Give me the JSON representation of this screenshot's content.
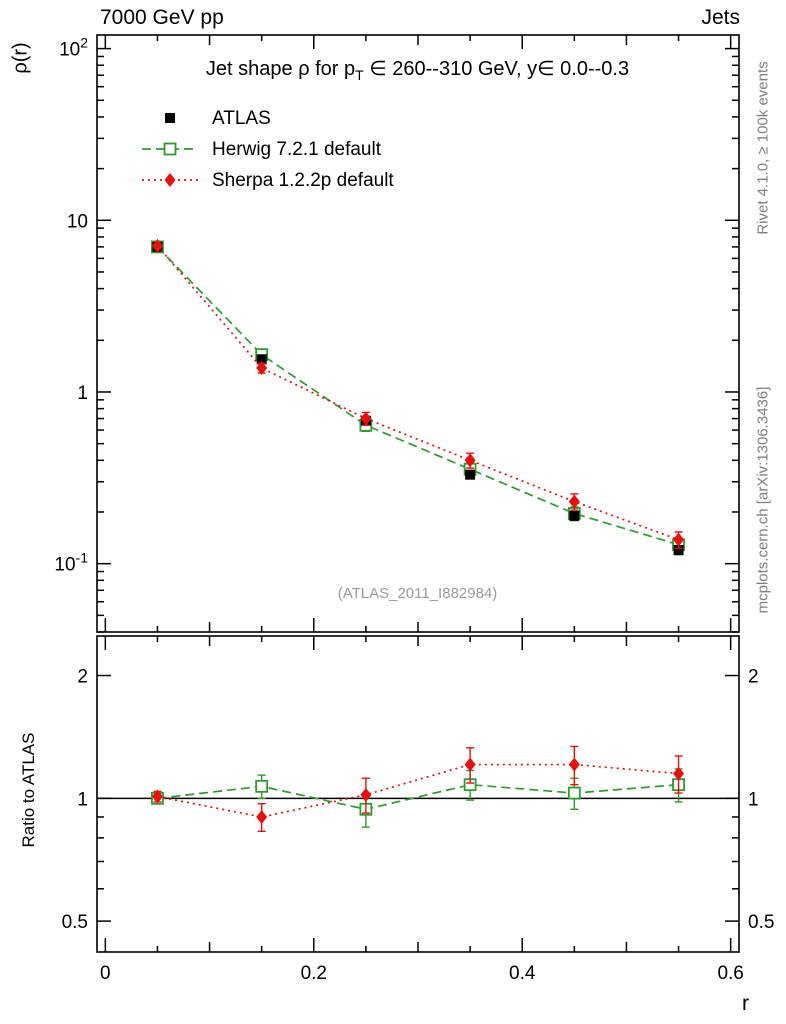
{
  "header": {
    "beam": "7000 GeV pp",
    "group": "Jets"
  },
  "side_labels": {
    "rivet": "Rivet 4.1.0, ≥ 100k events",
    "mcplots": "mcplots.cern.ch [arXiv:1306.3436]"
  },
  "chart_data": {
    "type": "line",
    "title_parts": {
      "pre": "Jet shape ρ for p",
      "sub": "T",
      "post": " ∈ 260--310 GeV, y∈ 0.0--0.3"
    },
    "watermark": "(ATLAS_2011_I882984)",
    "xlabel": "r",
    "ylabel_main": "ρ(r)",
    "ylabel_ratio": "Ratio to ATLAS",
    "legend_position": "top-left",
    "grid": false,
    "yscale": "log",
    "xlim": [
      0,
      0.6
    ],
    "ylim_main": [
      0.04,
      120
    ],
    "ylim_ratio": [
      0.42,
      2.5
    ],
    "x_ticks": [
      {
        "v": 0,
        "l": "0"
      },
      {
        "v": 0.2,
        "l": "0.2"
      },
      {
        "v": 0.4,
        "l": "0.4"
      },
      {
        "v": 0.6,
        "l": "0.6"
      }
    ],
    "y_ticks_main": [
      {
        "v": 0.1,
        "b": "10",
        "e": "-1"
      },
      {
        "v": 1,
        "b": "1"
      },
      {
        "v": 10,
        "b": "10"
      },
      {
        "v": 100,
        "b": "10",
        "e": "2"
      }
    ],
    "y_ticks_ratio": [
      {
        "v": 0.5,
        "b": "0.5"
      },
      {
        "v": 1,
        "b": "1"
      },
      {
        "v": 2,
        "b": "2"
      }
    ],
    "x": [
      0.05,
      0.15,
      0.25,
      0.35,
      0.45,
      0.55
    ],
    "series": [
      {
        "name": "ATLAS",
        "color": "#000000",
        "marker": "square-filled",
        "line": "none",
        "values": [
          7.0,
          1.55,
          0.68,
          0.33,
          0.19,
          0.12
        ],
        "errors": [
          0.15,
          0.06,
          0.03,
          0.015,
          0.01,
          0.007
        ]
      },
      {
        "name": "Herwig 7.2.1 default",
        "color": "#2e9b2e",
        "marker": "square-open",
        "line": "dashed",
        "values": [
          7.0,
          1.65,
          0.64,
          0.355,
          0.196,
          0.129
        ],
        "errors": [
          0.2,
          0.1,
          0.05,
          0.03,
          0.018,
          0.012
        ]
      },
      {
        "name": "Sherpa 1.2.2p default",
        "color": "#e8100c",
        "marker": "diamond-filled",
        "line": "dotted",
        "values": [
          7.1,
          1.38,
          0.7,
          0.4,
          0.23,
          0.138
        ],
        "errors": [
          0.2,
          0.09,
          0.06,
          0.04,
          0.025,
          0.015
        ]
      }
    ],
    "ratio": {
      "baseline": 1,
      "series": [
        {
          "name": "Herwig 7.2.1 default",
          "color": "#2e9b2e",
          "marker": "square-open",
          "line": "dashed",
          "values": [
            1.0,
            1.07,
            0.94,
            1.08,
            1.03,
            1.08
          ],
          "errors": [
            0.03,
            0.07,
            0.09,
            0.09,
            0.09,
            0.1
          ]
        },
        {
          "name": "Sherpa 1.2.2p default",
          "color": "#e8100c",
          "marker": "diamond-filled",
          "line": "dotted",
          "values": [
            1.01,
            0.9,
            1.02,
            1.21,
            1.21,
            1.15
          ],
          "errors": [
            0.03,
            0.07,
            0.1,
            0.12,
            0.13,
            0.12
          ]
        }
      ]
    }
  }
}
